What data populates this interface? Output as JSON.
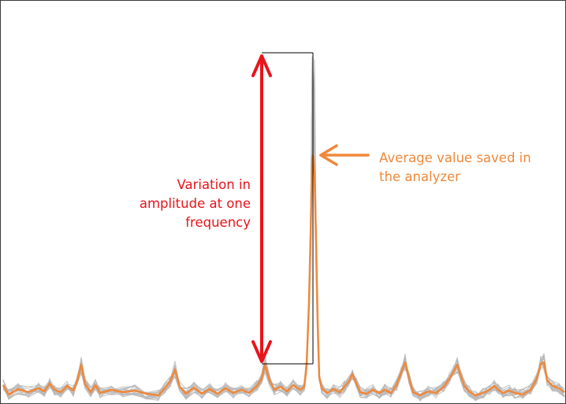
{
  "colors": {
    "variation": "#e8141b",
    "average": "#f0883a",
    "traces": "#b9b9b9",
    "bracket": "#000000",
    "border": "#3a3a3a"
  },
  "annotations": {
    "variation": {
      "lines": [
        "Variation in",
        "amplitude at one",
        "frequency"
      ]
    },
    "average": {
      "lines": [
        "Average value saved in",
        "the analyzer"
      ]
    }
  },
  "icons": {
    "variation_arrow": "double-headed-arrow-icon",
    "average_arrow": "left-arrow-icon"
  }
}
